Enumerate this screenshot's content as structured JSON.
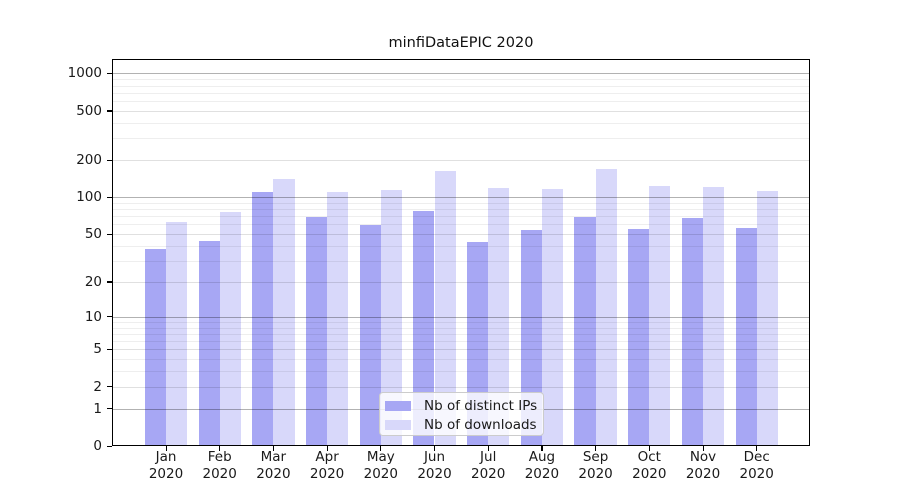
{
  "title": "minfiDataEPIC 2020",
  "chart_data": {
    "type": "bar",
    "title": "minfiDataEPIC 2020",
    "categories": [
      "Jan",
      "Feb",
      "Mar",
      "Apr",
      "May",
      "Jun",
      "Jul",
      "Aug",
      "Sep",
      "Oct",
      "Nov",
      "Dec"
    ],
    "year_label": "2020",
    "series": [
      {
        "name": "Nb of distinct IPs",
        "color": "#a7a7f4",
        "values": [
          37,
          43,
          108,
          68,
          58,
          76,
          42,
          53,
          68,
          54,
          66,
          55
        ]
      },
      {
        "name": "Nb of downloads",
        "color": "#d8d8fa",
        "values": [
          62,
          74,
          139,
          108,
          113,
          159,
          117,
          115,
          166,
          120,
          119,
          110
        ]
      }
    ],
    "xlabel": "",
    "ylabel": "",
    "yscale": "log1p",
    "yticks": [
      1000,
      500,
      200,
      100,
      50,
      20,
      10,
      5,
      2,
      1,
      0
    ],
    "ylim": [
      0,
      1300
    ],
    "grid": "on",
    "legend_position": "lower-center"
  }
}
